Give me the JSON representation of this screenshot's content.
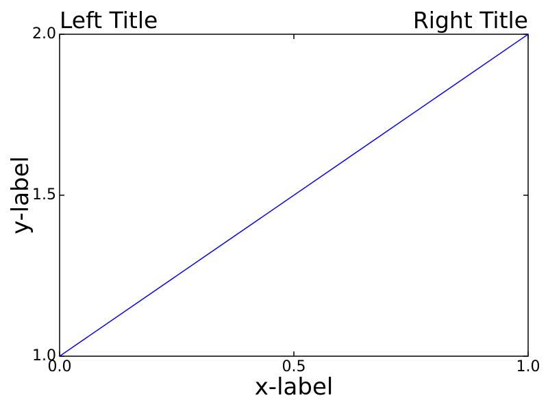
{
  "chart_data": {
    "type": "line",
    "title_left": "Left Title",
    "title_right": "Right Title",
    "xlabel": "x-label",
    "ylabel": "y-label",
    "xlim": [
      0.0,
      1.0
    ],
    "ylim": [
      1.0,
      2.0
    ],
    "xticks": {
      "values": [
        0.0,
        0.5,
        1.0
      ],
      "labels": [
        "0.0",
        "0.5",
        "1.0"
      ]
    },
    "yticks": {
      "values": [
        1.0,
        1.5,
        2.0
      ],
      "labels": [
        "1.0",
        "1.5",
        "2.0"
      ]
    },
    "grid": false,
    "legend": null,
    "tick_direction": "in",
    "axis_color": "#000000",
    "background": "#ffffff",
    "series": [
      {
        "color": "#0000ff",
        "x": [
          0.0,
          1.0
        ],
        "y": [
          1.0,
          2.0
        ]
      }
    ]
  }
}
